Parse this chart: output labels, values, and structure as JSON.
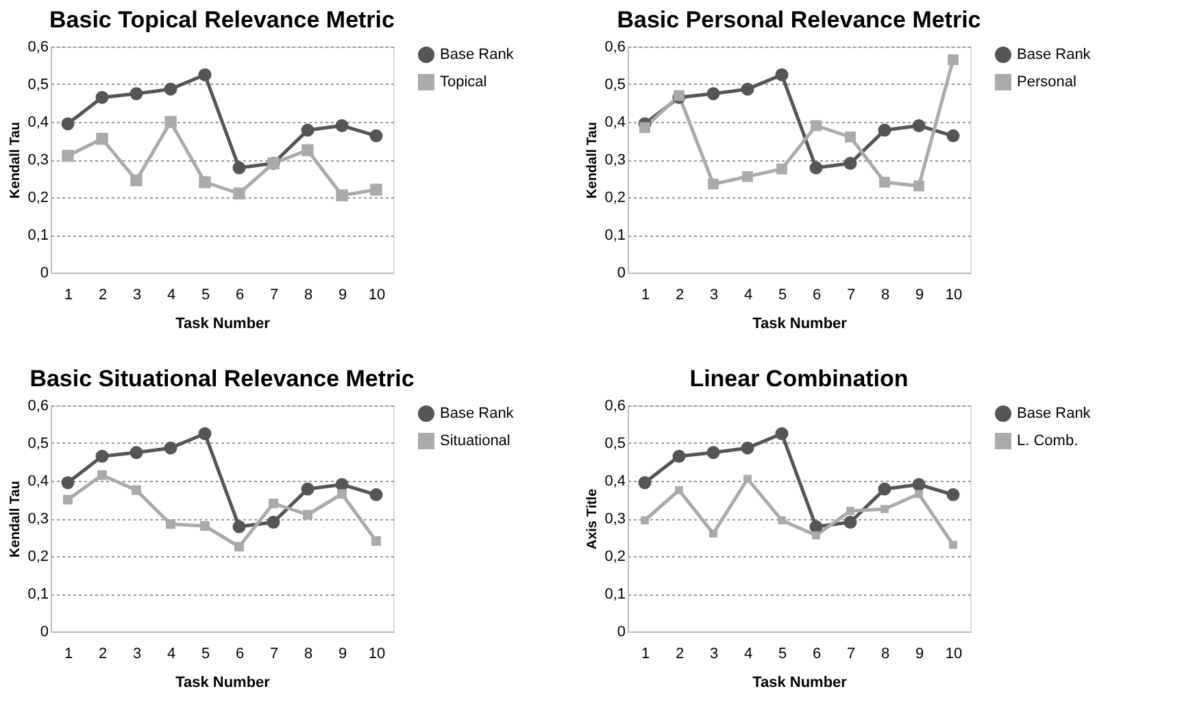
{
  "chart_data": [
    {
      "type": "line",
      "title": "Basic Topical Relevance Metric",
      "xlabel": "Task Number",
      "ylabel": "Kendall Tau",
      "categories": [
        "1",
        "2",
        "3",
        "4",
        "5",
        "6",
        "7",
        "8",
        "9",
        "10"
      ],
      "series": [
        {
          "name": "Base Rank",
          "color": "#555555",
          "marker": "circle",
          "values": [
            0.395,
            0.465,
            0.475,
            0.487,
            0.525,
            0.278,
            0.29,
            0.378,
            0.39,
            0.363
          ]
        },
        {
          "name": "Topical",
          "color": "#aaaaaa",
          "marker": "square",
          "values": [
            0.31,
            0.355,
            0.245,
            0.4,
            0.24,
            0.21,
            0.29,
            0.325,
            0.205,
            0.22
          ]
        }
      ],
      "ylim": [
        0,
        0.6
      ],
      "yticks": [
        {
          "value": 0,
          "label": "0"
        },
        {
          "value": 0.1,
          "label": "0,1"
        },
        {
          "value": 0.2,
          "label": "0,2"
        },
        {
          "value": 0.3,
          "label": "0,3"
        },
        {
          "value": 0.4,
          "label": "0,4"
        },
        {
          "value": 0.5,
          "label": "0,5"
        },
        {
          "value": 0.6,
          "label": "0,6"
        }
      ],
      "grid": "y",
      "legend": "right"
    },
    {
      "type": "line",
      "title": "Basic Personal Relevance Metric",
      "xlabel": "Task Number",
      "ylabel": "Kendall Tau",
      "categories": [
        "1",
        "2",
        "3",
        "4",
        "5",
        "6",
        "7",
        "8",
        "9",
        "10"
      ],
      "series": [
        {
          "name": "Base Rank",
          "color": "#555555",
          "marker": "circle",
          "values": [
            0.395,
            0.465,
            0.475,
            0.487,
            0.525,
            0.278,
            0.29,
            0.378,
            0.39,
            0.363
          ]
        },
        {
          "name": "Personal",
          "color": "#aaaaaa",
          "marker": "square",
          "values": [
            0.385,
            0.47,
            0.235,
            0.255,
            0.275,
            0.39,
            0.36,
            0.24,
            0.23,
            0.565
          ]
        }
      ],
      "ylim": [
        0,
        0.6
      ],
      "yticks": [
        {
          "value": 0,
          "label": "0"
        },
        {
          "value": 0.1,
          "label": "0,1"
        },
        {
          "value": 0.2,
          "label": "0,2"
        },
        {
          "value": 0.3,
          "label": "0,3"
        },
        {
          "value": 0.4,
          "label": "0,4"
        },
        {
          "value": 0.5,
          "label": "0,5"
        },
        {
          "value": 0.6,
          "label": "0,6"
        }
      ],
      "grid": "y",
      "legend": "right"
    },
    {
      "type": "line",
      "title": "Basic Situational Relevance Metric",
      "xlabel": "Task Number",
      "ylabel": "Kendall Tau",
      "categories": [
        "1",
        "2",
        "3",
        "4",
        "5",
        "6",
        "7",
        "8",
        "9",
        "10"
      ],
      "series": [
        {
          "name": "Base Rank",
          "color": "#555555",
          "marker": "circle",
          "values": [
            0.395,
            0.465,
            0.475,
            0.487,
            0.525,
            0.278,
            0.29,
            0.378,
            0.39,
            0.363
          ]
        },
        {
          "name": "Situational",
          "color": "#aaaaaa",
          "marker": "square",
          "values": [
            0.35,
            0.415,
            0.375,
            0.285,
            0.28,
            0.225,
            0.34,
            0.31,
            0.365,
            0.24
          ]
        }
      ],
      "ylim": [
        0,
        0.6
      ],
      "yticks": [
        {
          "value": 0,
          "label": "0"
        },
        {
          "value": 0.1,
          "label": "0,1"
        },
        {
          "value": 0.2,
          "label": "0,2"
        },
        {
          "value": 0.3,
          "label": "0,3"
        },
        {
          "value": 0.4,
          "label": "0,4"
        },
        {
          "value": 0.5,
          "label": "0,5"
        },
        {
          "value": 0.6,
          "label": "0,6"
        }
      ],
      "grid": "y",
      "legend": "right"
    },
    {
      "type": "line",
      "title": "Linear Combination",
      "xlabel": "Task Number",
      "ylabel": "Axis Title",
      "categories": [
        "1",
        "2",
        "3",
        "4",
        "5",
        "6",
        "7",
        "8",
        "9",
        "10"
      ],
      "series": [
        {
          "name": "Base Rank",
          "color": "#555555",
          "marker": "circle",
          "values": [
            0.395,
            0.465,
            0.475,
            0.487,
            0.525,
            0.278,
            0.29,
            0.378,
            0.39,
            0.363
          ]
        },
        {
          "name": "L. Comb.",
          "color": "#aaaaaa",
          "marker": "square",
          "values": [
            0.295,
            0.375,
            0.26,
            0.405,
            0.295,
            0.255,
            0.32,
            0.325,
            0.365,
            0.23
          ]
        }
      ],
      "ylim": [
        0,
        0.6
      ],
      "yticks": [
        {
          "value": 0,
          "label": "0"
        },
        {
          "value": 0.1,
          "label": "0,1"
        },
        {
          "value": 0.2,
          "label": "0,2"
        },
        {
          "value": 0.3,
          "label": "0,3"
        },
        {
          "value": 0.4,
          "label": "0,4"
        },
        {
          "value": 0.5,
          "label": "0,5"
        },
        {
          "value": 0.6,
          "label": "0,6"
        }
      ],
      "grid": "y",
      "legend": "right"
    }
  ]
}
